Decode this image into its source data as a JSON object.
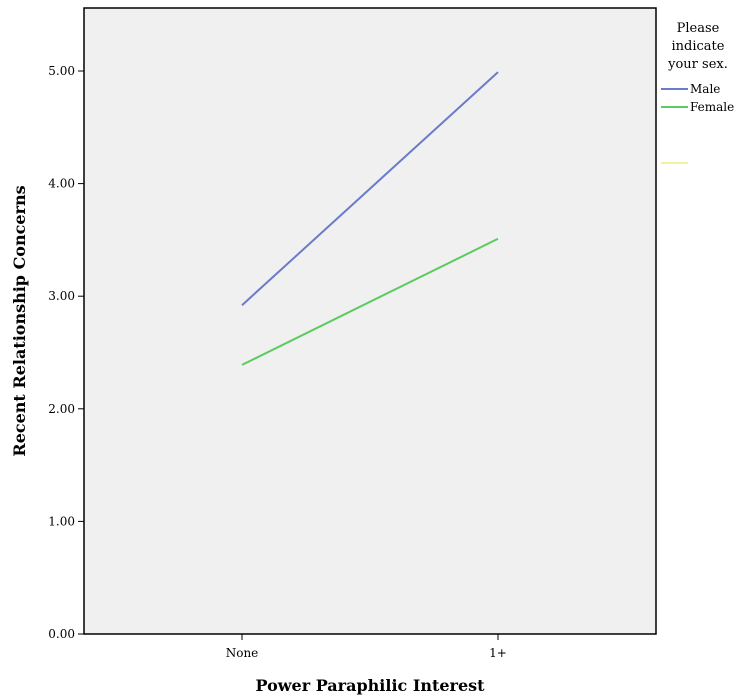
{
  "chart_data": {
    "type": "line",
    "xlabel": "Power Paraphilic Interest",
    "ylabel": "Recent Relationship Concerns",
    "categories": [
      "None",
      "1+"
    ],
    "ylim": [
      0,
      5.6
    ],
    "yticks": [
      "0.00",
      "1.00",
      "2.00",
      "3.00",
      "4.00",
      "5.00"
    ],
    "legend": {
      "title_lines": [
        "Please",
        "indicate",
        "your sex."
      ],
      "placement": "right"
    },
    "series": [
      {
        "name": "Male",
        "values": [
          2.92,
          4.99
        ],
        "color": "#6a7bc9"
      },
      {
        "name": "Female",
        "values": [
          2.39,
          3.51
        ],
        "color": "#5ccb5f"
      }
    ],
    "plot_background": "#f0f0f0",
    "grid": false
  }
}
